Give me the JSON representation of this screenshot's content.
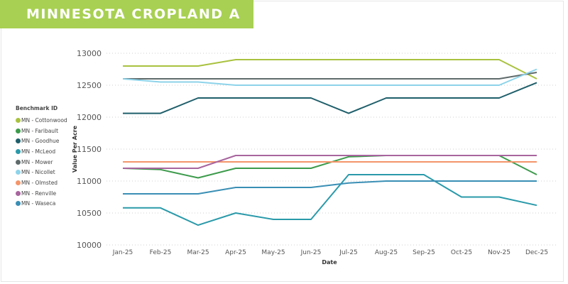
{
  "banner": {
    "title": "MINNESOTA CROPLAND A"
  },
  "chart_data": {
    "type": "line",
    "title": "MINNESOTA CROPLAND A",
    "xlabel": "Date",
    "ylabel": "Value Per Acre",
    "legend_title": "Benchmark ID",
    "legend_position": "left",
    "grid": true,
    "ylim": [
      10000,
      13000
    ],
    "yticks": [
      "10000",
      "10500",
      "11000",
      "11500",
      "12000",
      "12500",
      "13000"
    ],
    "categories": [
      "Jan-25",
      "Feb-25",
      "Mar-25",
      "Apr-25",
      "May-25",
      "Jun-25",
      "Jul-25",
      "Aug-25",
      "Sep-25",
      "Oct-25",
      "Nov-25",
      "Dec-25"
    ],
    "series": [
      {
        "name": "MN - Cottonwood",
        "color": "#a9c23f",
        "values": [
          12800,
          12800,
          12800,
          12900,
          12900,
          12900,
          12900,
          12900,
          12900,
          12900,
          12900,
          12600
        ]
      },
      {
        "name": "MN - Faribault",
        "color": "#3d9b4c",
        "values": [
          11200,
          11180,
          11050,
          11200,
          11200,
          11200,
          11380,
          11400,
          11400,
          11400,
          11400,
          11100
        ]
      },
      {
        "name": "MN - Goodhue",
        "color": "#1f5f6b",
        "values": [
          12060,
          12060,
          12300,
          12300,
          12300,
          12300,
          12060,
          12300,
          12300,
          12300,
          12300,
          12540
        ]
      },
      {
        "name": "MN - McLeod",
        "color": "#2a9aaa",
        "values": [
          10580,
          10580,
          10310,
          10500,
          10400,
          10400,
          11100,
          11100,
          11100,
          10750,
          10750,
          10620
        ]
      },
      {
        "name": "MN - Mower",
        "color": "#5f6a6a",
        "values": [
          12600,
          12600,
          12600,
          12600,
          12600,
          12600,
          12600,
          12600,
          12600,
          12600,
          12600,
          12700
        ]
      },
      {
        "name": "MN - Nicollet",
        "color": "#8dd3ea",
        "values": [
          12600,
          12550,
          12550,
          12500,
          12500,
          12500,
          12500,
          12500,
          12500,
          12500,
          12500,
          12750
        ]
      },
      {
        "name": "MN - Olmsted",
        "color": "#f4956a",
        "values": [
          11300,
          11300,
          11300,
          11300,
          11300,
          11300,
          11300,
          11300,
          11300,
          11300,
          11300,
          11300
        ]
      },
      {
        "name": "MN - Renville",
        "color": "#a8659e",
        "values": [
          11200,
          11200,
          11200,
          11400,
          11400,
          11400,
          11400,
          11400,
          11400,
          11400,
          11400,
          11400
        ]
      },
      {
        "name": "MN - Waseca",
        "color": "#3a8fb5",
        "values": [
          10800,
          10800,
          10800,
          10900,
          10900,
          10900,
          10970,
          11000,
          11000,
          11000,
          11000,
          11000
        ]
      }
    ]
  }
}
